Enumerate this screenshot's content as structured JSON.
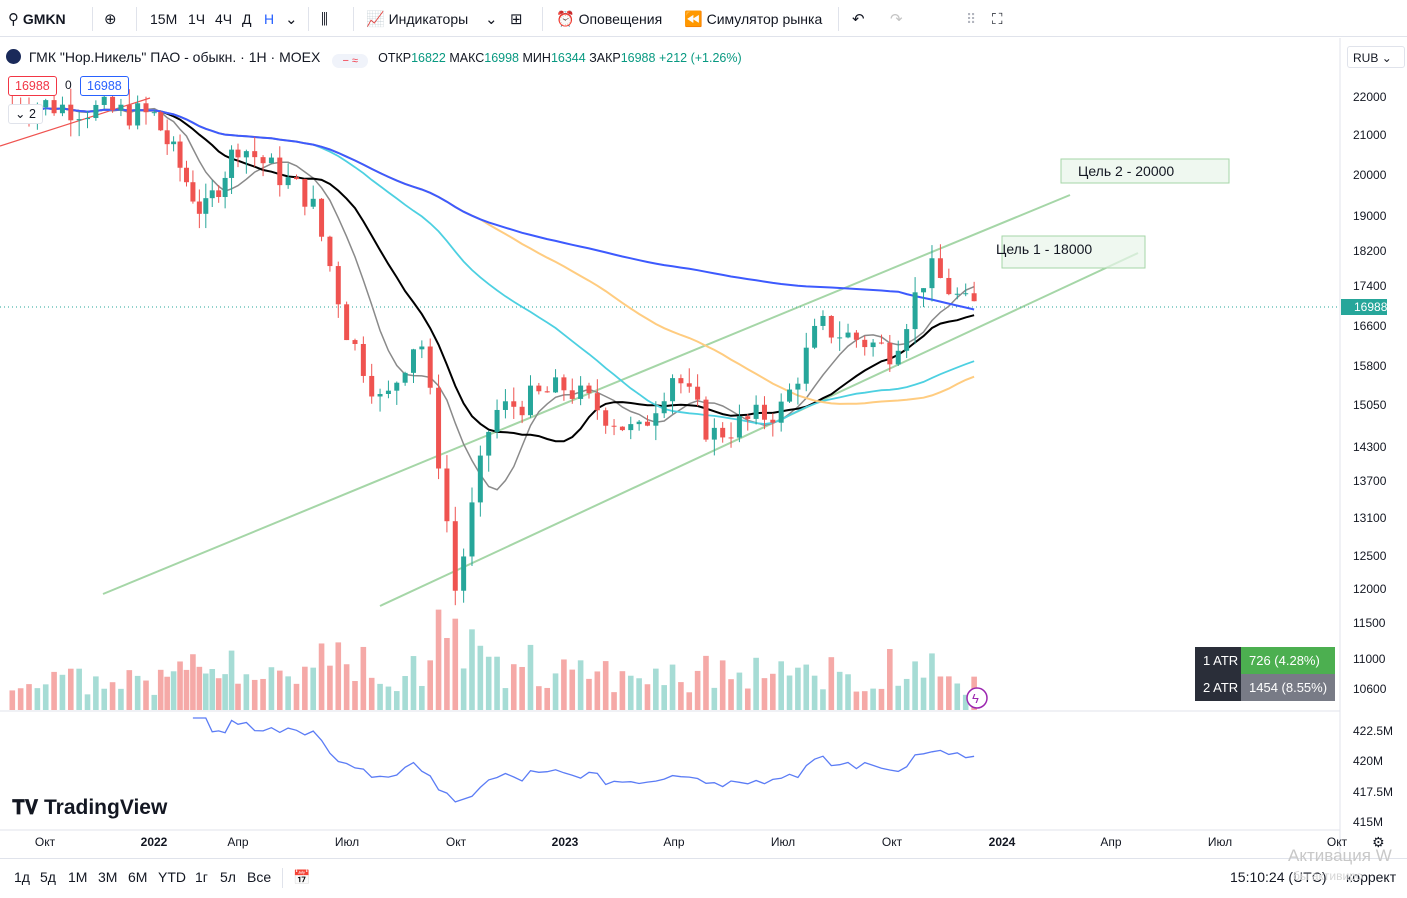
{
  "toolbar": {
    "symbol": "GMKN",
    "intervals": [
      "15М",
      "1Ч",
      "4Ч",
      "Д",
      "Н"
    ],
    "indicators": "Индикаторы",
    "alerts": "Оповещения",
    "replay": "Симулятор рынка"
  },
  "legend": {
    "title": "ГМК \"Нор.Никель\" ПАО - обыкн. · 1Н · MOEX",
    "open_label": "ОТКР",
    "open": "16822",
    "high_label": "МАКС",
    "high": "16998",
    "low_label": "МИН",
    "low": "16344",
    "close_label": "ЗАКР",
    "close": "16988",
    "change": "+212 (+1.26%)",
    "sell_price": "16988",
    "spread": "0",
    "buy_price": "16988",
    "lots": "2"
  },
  "currency": "RUB",
  "price_tag": "16988",
  "targets": {
    "target1": "Цель 1 - 18000",
    "target2": "Цель 2 - 20000"
  },
  "atr": [
    {
      "label": "1 ATR",
      "value": "726 (4.28%)",
      "color": "#4caf50"
    },
    {
      "label": "2 ATR",
      "value": "1454 (8.55%)",
      "color": "#787b86"
    }
  ],
  "logo": "TradingView",
  "bottombar": {
    "ranges": [
      "1д",
      "5д",
      "1М",
      "3М",
      "6М",
      "YTD",
      "1г",
      "5л",
      "Все"
    ],
    "time": "15:10:24 (UTC)",
    "adjust": "коррект",
    "watermark": "Активация W",
    "watermark_sub": "бы активиро"
  },
  "colors": {
    "up": "#26a69a",
    "down": "#ef5350",
    "ma_black": "#000000",
    "ma_gray": "#8a8a8a",
    "ma_teal": "#4dd0e1",
    "ma_orange": "#ffcc80",
    "ma_blue": "#3d5afe",
    "channel": "#a5d6a7",
    "indicator": "#5b7cf5"
  },
  "chart_data": {
    "type": "candlestick",
    "y_ticks": [
      "22000",
      "21000",
      "20000",
      "19000",
      "18200",
      "17400",
      "16600",
      "15800",
      "15050",
      "14300",
      "13700",
      "13100",
      "12500",
      "12000",
      "11500",
      "11000",
      "10600"
    ],
    "x_ticks": [
      "Окт",
      "2022",
      "Апр",
      "Июл",
      "Окт",
      "2023",
      "Апр",
      "Июл",
      "Окт",
      "2024",
      "Апр",
      "Июл",
      "Окт"
    ],
    "indicator_ticks": [
      "422.5M",
      "420M",
      "417.5M",
      "415M"
    ],
    "close_path": [
      {
        "date": "2021-10",
        "close": 21800
      },
      {
        "date": "2022-01",
        "close": 21500
      },
      {
        "date": "2022-02-24",
        "close": 19000
      },
      {
        "date": "2022-04",
        "close": 20800
      },
      {
        "date": "2022-06",
        "close": 19400
      },
      {
        "date": "2022-07",
        "close": 16500
      },
      {
        "date": "2022-08",
        "close": 15000
      },
      {
        "date": "2022-09",
        "close": 16500
      },
      {
        "date": "2022-10-01",
        "close": 11900
      },
      {
        "date": "2022-11",
        "close": 14900
      },
      {
        "date": "2023-01",
        "close": 15400
      },
      {
        "date": "2023-03",
        "close": 14500
      },
      {
        "date": "2023-04",
        "close": 15700
      },
      {
        "date": "2023-05",
        "close": 14500
      },
      {
        "date": "2023-07",
        "close": 15000
      },
      {
        "date": "2023-08",
        "close": 16600
      },
      {
        "date": "2023-10",
        "close": 16100
      },
      {
        "date": "2023-11",
        "close": 17800
      },
      {
        "date": "2023-12",
        "close": 16988
      }
    ]
  }
}
